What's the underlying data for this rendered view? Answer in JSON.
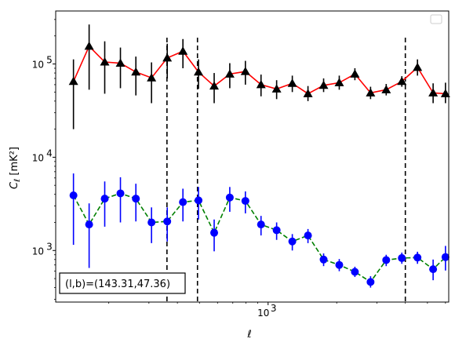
{
  "chart_data": {
    "type": "line",
    "xscale": "log",
    "yscale": "log",
    "xlim": [
      117,
      6200
    ],
    "ylim": [
      280,
      370000
    ],
    "xlabel": "ℓ",
    "ylabel": "C_ℓ  [mK²]",
    "x_ticks": [
      {
        "value": 1000,
        "base": "10",
        "exp": "3"
      }
    ],
    "y_ticks": [
      {
        "value": 1000,
        "base": "10",
        "exp": "3"
      },
      {
        "value": 10000,
        "base": "10",
        "exp": "4"
      },
      {
        "value": 100000,
        "base": "10",
        "exp": "5"
      }
    ],
    "legend": {
      "placement": "top-right",
      "entries": []
    },
    "annotation": {
      "text": "(l,b)=(143.31,47.36)",
      "placement": "bottom-left"
    },
    "vlines": [
      {
        "x": 360,
        "style": "dashed",
        "color": "#000000"
      },
      {
        "x": 490,
        "style": "dashed",
        "color": "#000000"
      },
      {
        "x": 4000,
        "style": "dashed",
        "color": "#000000"
      }
    ],
    "series": [
      {
        "color": "#ff0000",
        "line_style": "solid",
        "marker": "triangle",
        "marker_color": "#000000",
        "errorbar_color": "#000000",
        "points": [
          {
            "x": 140,
            "y": 65000,
            "lo": 20000,
            "hi": 112000
          },
          {
            "x": 164,
            "y": 155000,
            "lo": 53000,
            "hi": 265000
          },
          {
            "x": 192,
            "y": 105000,
            "lo": 48000,
            "hi": 175000
          },
          {
            "x": 225,
            "y": 102000,
            "lo": 55000,
            "hi": 150000
          },
          {
            "x": 263,
            "y": 82000,
            "lo": 46000,
            "hi": 120000
          },
          {
            "x": 308,
            "y": 71000,
            "lo": 38000,
            "hi": 104000
          },
          {
            "x": 361,
            "y": 116000,
            "lo": 70000,
            "hi": 165000
          },
          {
            "x": 423,
            "y": 137000,
            "lo": 90000,
            "hi": 185000
          },
          {
            "x": 495,
            "y": 82000,
            "lo": 54000,
            "hi": 112000
          },
          {
            "x": 580,
            "y": 58000,
            "lo": 38000,
            "hi": 80000
          },
          {
            "x": 679,
            "y": 78000,
            "lo": 55000,
            "hi": 102000
          },
          {
            "x": 795,
            "y": 83000,
            "lo": 60000,
            "hi": 108000
          },
          {
            "x": 931,
            "y": 60000,
            "lo": 45000,
            "hi": 77000
          },
          {
            "x": 1090,
            "y": 54000,
            "lo": 42000,
            "hi": 67000
          },
          {
            "x": 1277,
            "y": 62000,
            "lo": 50000,
            "hi": 75000
          },
          {
            "x": 1496,
            "y": 48000,
            "lo": 40000,
            "hi": 58000
          },
          {
            "x": 1752,
            "y": 59000,
            "lo": 50000,
            "hi": 70000
          },
          {
            "x": 2052,
            "y": 63000,
            "lo": 53000,
            "hi": 75000
          },
          {
            "x": 2403,
            "y": 78000,
            "lo": 67000,
            "hi": 90000
          },
          {
            "x": 2815,
            "y": 49000,
            "lo": 42000,
            "hi": 57000
          },
          {
            "x": 3297,
            "y": 53000,
            "lo": 46000,
            "hi": 61000
          },
          {
            "x": 3861,
            "y": 65000,
            "lo": 57000,
            "hi": 74000
          },
          {
            "x": 4522,
            "y": 92000,
            "lo": 75000,
            "hi": 112000
          },
          {
            "x": 5296,
            "y": 49000,
            "lo": 38000,
            "hi": 62000
          },
          {
            "x": 6000,
            "y": 48000,
            "lo": 38000,
            "hi": 63000
          }
        ]
      },
      {
        "color": "#008000",
        "line_style": "dashed",
        "marker": "circle",
        "marker_color": "#0000ff",
        "errorbar_color": "#0000ff",
        "points": [
          {
            "x": 140,
            "y": 3900,
            "lo": 1150,
            "hi": 6700
          },
          {
            "x": 164,
            "y": 1900,
            "lo": 650,
            "hi": 3200
          },
          {
            "x": 192,
            "y": 3600,
            "lo": 1800,
            "hi": 5500
          },
          {
            "x": 225,
            "y": 4100,
            "lo": 2000,
            "hi": 6100
          },
          {
            "x": 263,
            "y": 3600,
            "lo": 2050,
            "hi": 5200
          },
          {
            "x": 308,
            "y": 2000,
            "lo": 1200,
            "hi": 2900
          },
          {
            "x": 361,
            "y": 2050,
            "lo": 1250,
            "hi": 2900
          },
          {
            "x": 423,
            "y": 3300,
            "lo": 2050,
            "hi": 4600
          },
          {
            "x": 495,
            "y": 3450,
            "lo": 2150,
            "hi": 4800
          },
          {
            "x": 580,
            "y": 1550,
            "lo": 980,
            "hi": 2150
          },
          {
            "x": 679,
            "y": 3700,
            "lo": 2600,
            "hi": 4800
          },
          {
            "x": 795,
            "y": 3400,
            "lo": 2500,
            "hi": 4300
          },
          {
            "x": 931,
            "y": 1900,
            "lo": 1450,
            "hi": 2350
          },
          {
            "x": 1090,
            "y": 1650,
            "lo": 1300,
            "hi": 2000
          },
          {
            "x": 1277,
            "y": 1250,
            "lo": 1000,
            "hi": 1500
          },
          {
            "x": 1496,
            "y": 1450,
            "lo": 1200,
            "hi": 1700
          },
          {
            "x": 1752,
            "y": 800,
            "lo": 680,
            "hi": 930
          },
          {
            "x": 2052,
            "y": 700,
            "lo": 600,
            "hi": 810
          },
          {
            "x": 2403,
            "y": 590,
            "lo": 520,
            "hi": 670
          },
          {
            "x": 2815,
            "y": 460,
            "lo": 400,
            "hi": 530
          },
          {
            "x": 3297,
            "y": 790,
            "lo": 680,
            "hi": 900
          },
          {
            "x": 3861,
            "y": 830,
            "lo": 720,
            "hi": 950
          },
          {
            "x": 4522,
            "y": 840,
            "lo": 720,
            "hi": 970
          },
          {
            "x": 5296,
            "y": 630,
            "lo": 480,
            "hi": 800
          },
          {
            "x": 6000,
            "y": 850,
            "lo": 610,
            "hi": 1120
          }
        ]
      }
    ]
  }
}
